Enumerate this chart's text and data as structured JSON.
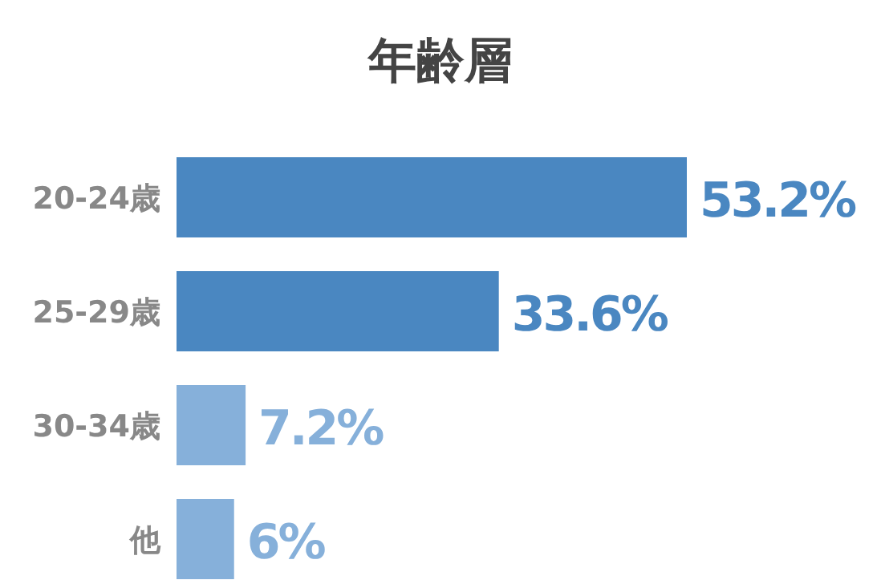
{
  "chart_data": {
    "type": "bar",
    "orientation": "horizontal",
    "title": "年齢層",
    "categories": [
      "20-24歳",
      "25-29歳",
      "30-34歳",
      "他"
    ],
    "values": [
      53.2,
      33.6,
      7.2,
      6
    ],
    "colors": [
      "#4a87c1",
      "#4a87c1",
      "#86b0da",
      "#86b0da"
    ],
    "value_labels": [
      "53.2%",
      "33.6%",
      "7.2%",
      "6%"
    ]
  }
}
